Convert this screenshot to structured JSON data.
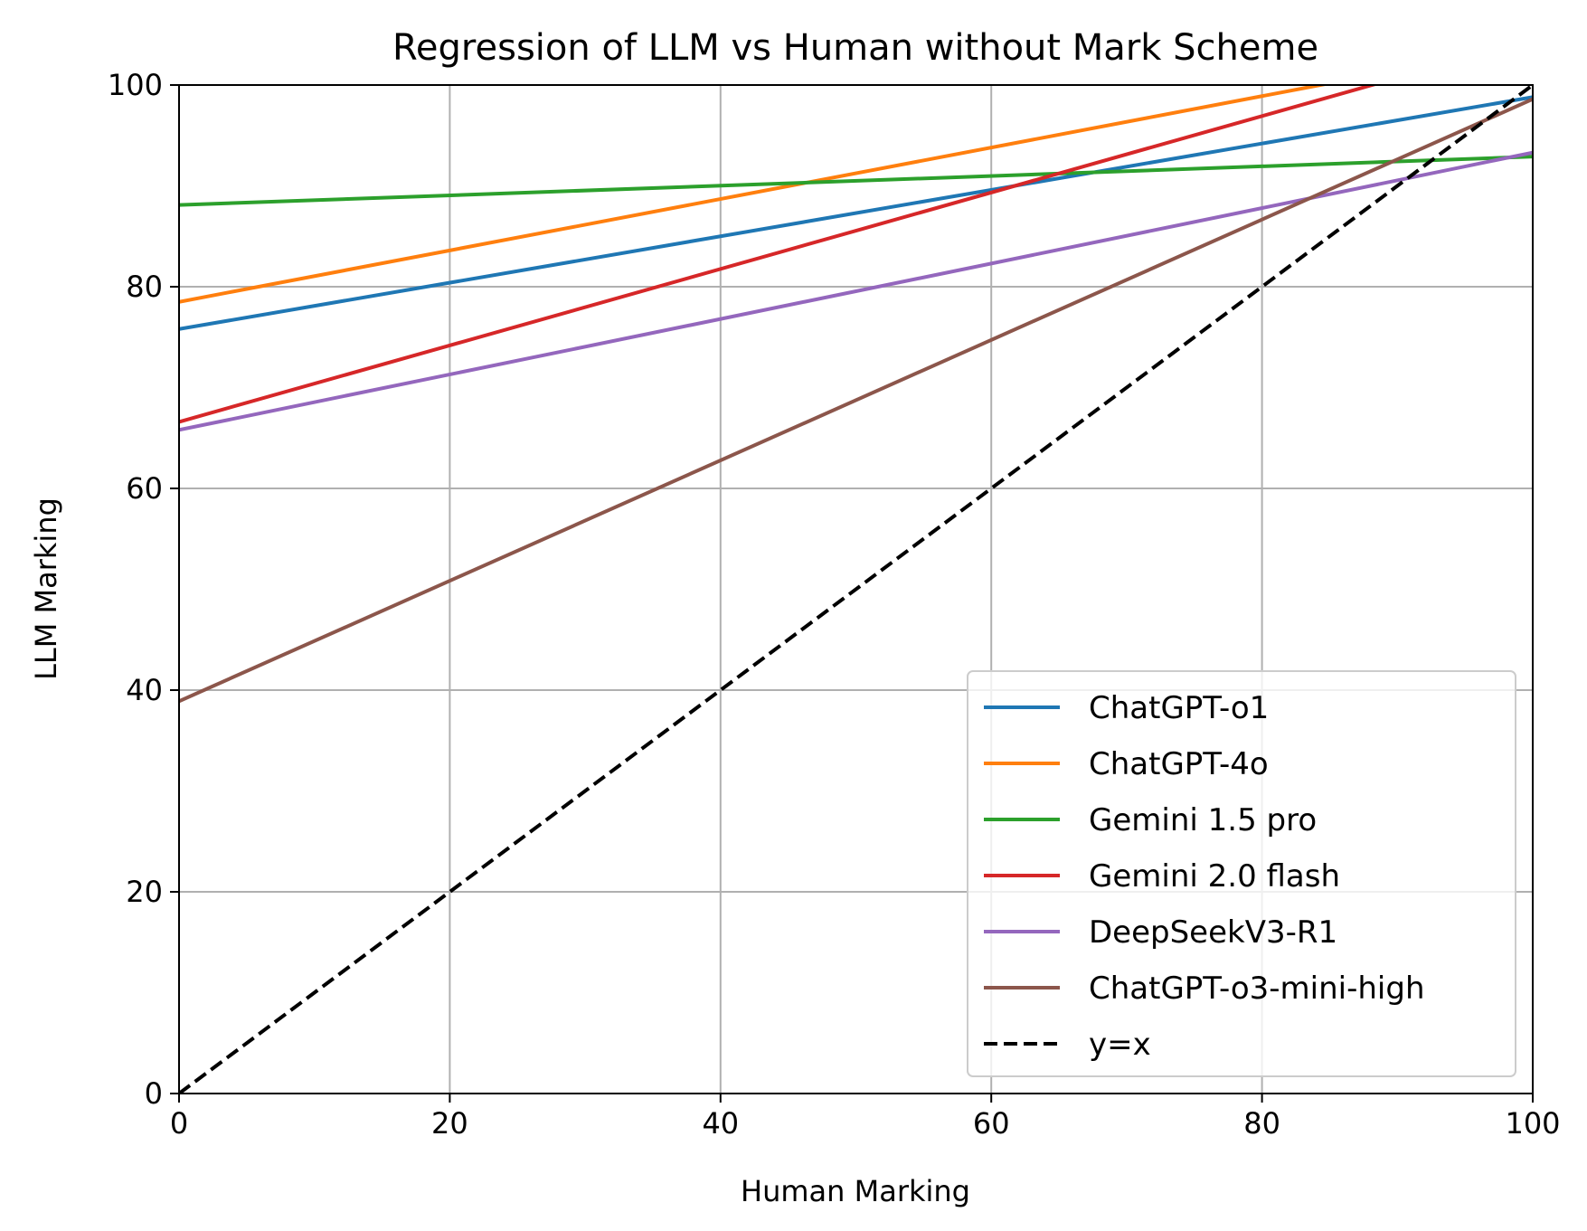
{
  "chart_data": {
    "type": "line",
    "title": "Regression of LLM vs Human without Mark Scheme",
    "xlabel": "Human Marking",
    "ylabel": "LLM Marking",
    "xlim": [
      0,
      100
    ],
    "ylim": [
      0,
      100
    ],
    "xticks": [
      "0",
      "20",
      "40",
      "60",
      "80",
      "100"
    ],
    "yticks": [
      "0",
      "20",
      "40",
      "60",
      "80",
      "100"
    ],
    "grid": true,
    "legend_position": "bottom-right",
    "series": [
      {
        "name": "ChatGPT-o1",
        "color": "#1f77b4",
        "style": "solid",
        "x": [
          0,
          100
        ],
        "y": [
          75.8,
          98.8
        ]
      },
      {
        "name": "ChatGPT-4o",
        "color": "#ff7f0e",
        "style": "solid",
        "x": [
          0,
          100
        ],
        "y": [
          78.5,
          104.0
        ]
      },
      {
        "name": "Gemini 1.5 pro",
        "color": "#2ca02c",
        "style": "solid",
        "x": [
          0,
          100
        ],
        "y": [
          88.1,
          92.9
        ]
      },
      {
        "name": "Gemini 2.0 flash",
        "color": "#d62728",
        "style": "solid",
        "x": [
          0,
          100
        ],
        "y": [
          66.6,
          104.5
        ]
      },
      {
        "name": "DeepSeekV3-R1",
        "color": "#9467bd",
        "style": "solid",
        "x": [
          0,
          100
        ],
        "y": [
          65.8,
          93.3
        ]
      },
      {
        "name": "ChatGPT-o3-mini-high",
        "color": "#8c564b",
        "style": "solid",
        "x": [
          0,
          100
        ],
        "y": [
          38.9,
          98.6
        ]
      },
      {
        "name": "y=x",
        "color": "#000000",
        "style": "dashed",
        "x": [
          0,
          100
        ],
        "y": [
          0,
          100
        ]
      }
    ]
  }
}
